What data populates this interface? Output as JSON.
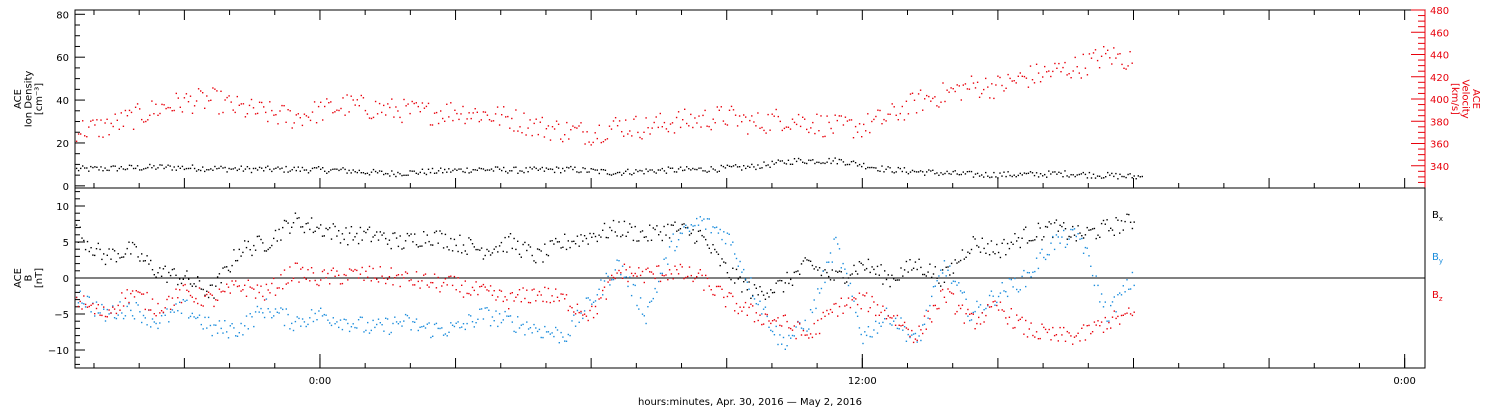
{
  "chart_data": [
    {
      "panel": "top",
      "type": "scatter",
      "xlabel": "hours:minutes, Apr. 30, 2016 — May  2, 2016",
      "x_ticks": [
        "0:00",
        "12:00",
        "0:00"
      ],
      "x_tick_hours": [
        0,
        12,
        24
      ],
      "x_range_hours": [
        -5.42,
        24.45
      ],
      "left_axis": {
        "label_lines": [
          "ACE",
          "Ion Density",
          "[cm⁻³]"
        ],
        "range": [
          -1,
          82
        ],
        "ticks": [
          0,
          20,
          40,
          60,
          80
        ],
        "tick_labels": [
          "0",
          "20",
          "40",
          "60",
          "80"
        ],
        "color": "#000000"
      },
      "right_axis": {
        "label_lines": [
          "ACE",
          "Velocity",
          "[km/s]"
        ],
        "range": [
          320,
          480
        ],
        "ticks": [
          340,
          360,
          380,
          400,
          420,
          440,
          460,
          480
        ],
        "tick_labels": [
          "340",
          "360",
          "380",
          "400",
          "420",
          "440",
          "460",
          "480"
        ],
        "color": "#e8000b"
      },
      "series": [
        {
          "axis": "left",
          "color": "#000000",
          "x": [
            -5.4,
            -4.5,
            -3.5,
            -2.5,
            -1.5,
            -0.5,
            0.5,
            1.5,
            2.5,
            3.5,
            4.5,
            5.5,
            6.5,
            7.5,
            8.5,
            9.5,
            10.5,
            11.5,
            12.5,
            13.5,
            14.5,
            15.5,
            16.5,
            17.5,
            18.2
          ],
          "y": [
            8,
            8.5,
            9,
            8.5,
            8,
            8,
            7.5,
            6,
            7,
            8,
            7.5,
            8,
            6.5,
            7.5,
            8,
            9,
            12,
            12,
            8,
            6.5,
            5.5,
            5.5,
            6,
            5,
            4.5
          ]
        },
        {
          "axis": "right",
          "color": "#e8000b",
          "x": [
            -5.4,
            -4.8,
            -4.2,
            -3.6,
            -3.0,
            -2.4,
            -1.8,
            -1.2,
            -0.6,
            0.0,
            0.6,
            1.2,
            1.8,
            2.4,
            3.0,
            3.6,
            4.2,
            4.8,
            5.4,
            6.0,
            6.6,
            7.2,
            7.8,
            8.4,
            9.0,
            9.6,
            10.2,
            10.8,
            11.4,
            12.0,
            12.6,
            13.2,
            13.8,
            14.4,
            15.0,
            15.6,
            16.2,
            16.8,
            17.4,
            18.0
          ],
          "y": [
            373,
            375,
            383,
            392,
            398,
            400,
            392,
            388,
            384,
            390,
            395,
            392,
            390,
            388,
            390,
            387,
            383,
            376,
            372,
            370,
            377,
            375,
            380,
            382,
            385,
            378,
            383,
            380,
            375,
            376,
            385,
            398,
            405,
            412,
            412,
            420,
            425,
            430,
            440,
            435
          ]
        }
      ]
    },
    {
      "panel": "bottom",
      "type": "scatter",
      "x_range_hours": [
        -5.42,
        24.45
      ],
      "left_axis": {
        "label_lines": [
          "ACE",
          "B",
          "[nT]"
        ],
        "range": [
          -12.5,
          12.5
        ],
        "ticks": [
          -10,
          -5,
          0,
          5,
          10
        ],
        "tick_labels": [
          "−10",
          "−5",
          "0",
          "5",
          "10"
        ],
        "color": "#000000"
      },
      "zero_line": true,
      "legend": {
        "placement": "right",
        "entries": [
          {
            "label": "B",
            "sub": "x",
            "color": "#000000"
          },
          {
            "label": "B",
            "sub": "y",
            "color": "#1a8cdc"
          },
          {
            "label": "B",
            "sub": "z",
            "color": "#e8000b"
          }
        ]
      },
      "series": [
        {
          "name": "Bx",
          "color": "#000000",
          "x": [
            -5.4,
            -4.8,
            -4.2,
            -3.6,
            -3.0,
            -2.4,
            -1.8,
            -1.2,
            -0.6,
            0.0,
            0.6,
            1.2,
            1.8,
            2.4,
            3.0,
            3.6,
            4.2,
            4.8,
            5.4,
            6.0,
            6.6,
            7.2,
            7.8,
            8.4,
            9.0,
            9.6,
            10.2,
            10.8,
            11.4,
            12.0,
            12.6,
            13.2,
            13.8,
            14.4,
            15.0,
            15.6,
            16.2,
            16.8,
            17.4,
            18.0
          ],
          "y": [
            6.5,
            3,
            4,
            1,
            0,
            -2,
            4,
            5,
            8,
            7,
            6,
            6,
            5,
            6,
            5,
            4,
            5,
            3,
            5,
            6,
            7,
            6,
            7,
            6,
            1,
            -2,
            -1,
            2,
            0,
            2,
            0,
            2,
            0,
            5,
            4,
            6,
            7,
            6,
            7,
            8
          ]
        },
        {
          "name": "By",
          "color": "#1a8cdc",
          "x": [
            -5.4,
            -4.8,
            -4.2,
            -3.6,
            -3.0,
            -2.4,
            -1.8,
            -1.2,
            -0.6,
            0.0,
            0.6,
            1.2,
            1.8,
            2.4,
            3.0,
            3.6,
            4.2,
            4.8,
            5.4,
            6.0,
            6.6,
            7.2,
            7.8,
            8.4,
            9.0,
            9.6,
            10.2,
            10.8,
            11.4,
            12.0,
            12.6,
            13.2,
            13.8,
            14.4,
            15.0,
            15.6,
            16.2,
            16.8,
            17.4,
            18.0
          ],
          "y": [
            -2,
            -5,
            -4,
            -6,
            -4,
            -7,
            -7,
            -4,
            -6,
            -5,
            -6,
            -7,
            -6,
            -7,
            -7,
            -5,
            -6,
            -7,
            -8,
            -3,
            2,
            -5,
            5,
            8,
            6,
            -2,
            -9,
            -6,
            5,
            -8,
            -5,
            -9,
            2,
            -5,
            -2,
            0,
            5,
            6,
            -5,
            0
          ]
        },
        {
          "name": "Bz",
          "color": "#e8000b",
          "x": [
            -5.4,
            -4.8,
            -4.2,
            -3.6,
            -3.0,
            -2.4,
            -1.8,
            -1.2,
            -0.6,
            0.0,
            0.6,
            1.2,
            1.8,
            2.4,
            3.0,
            3.6,
            4.2,
            4.8,
            5.4,
            6.0,
            6.6,
            7.2,
            7.8,
            8.4,
            9.0,
            9.6,
            10.2,
            10.8,
            11.4,
            12.0,
            12.6,
            13.2,
            13.8,
            14.4,
            15.0,
            15.6,
            16.2,
            16.8,
            17.4,
            18.0
          ],
          "y": [
            -3,
            -5,
            -2,
            -4,
            -2,
            -3,
            -1,
            -2,
            1,
            0,
            0.5,
            0.5,
            0,
            -0.5,
            -1,
            -2,
            -3,
            -2,
            -3,
            -5,
            1,
            0.5,
            1,
            0,
            -3,
            -5,
            -6,
            -8,
            -4,
            -3,
            -5,
            -8,
            -2,
            -6,
            -4,
            -7,
            -8,
            -8,
            -6,
            -5
          ]
        }
      ]
    }
  ]
}
